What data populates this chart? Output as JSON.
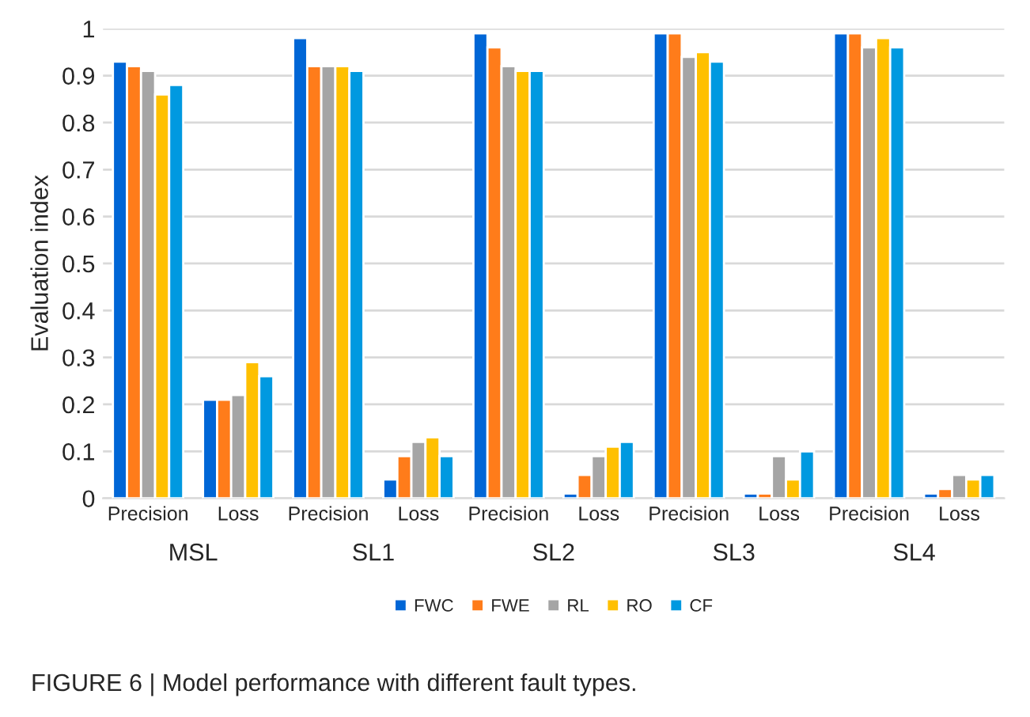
{
  "chart_data": {
    "type": "bar",
    "ylabel": "Evaluation index",
    "categories": [
      "Precision",
      "Loss",
      "Precision",
      "Loss",
      "Precision",
      "Loss",
      "Precision",
      "Loss",
      "Precision",
      "Loss"
    ],
    "series": [
      {
        "name": "FWC",
        "color": "#0066d6",
        "values": [
          0.93,
          0.21,
          0.98,
          0.04,
          0.99,
          0.01,
          0.99,
          0.01,
          0.99,
          0.01
        ]
      },
      {
        "name": "FWE",
        "color": "#ff7c1a",
        "values": [
          0.92,
          0.21,
          0.92,
          0.09,
          0.96,
          0.05,
          0.99,
          0.01,
          0.99,
          0.02
        ]
      },
      {
        "name": "RL",
        "color": "#a5a5a5",
        "values": [
          0.91,
          0.22,
          0.92,
          0.12,
          0.92,
          0.09,
          0.94,
          0.09,
          0.96,
          0.05
        ]
      },
      {
        "name": "RO",
        "color": "#ffc000",
        "values": [
          0.86,
          0.29,
          0.92,
          0.13,
          0.91,
          0.11,
          0.95,
          0.04,
          0.98,
          0.04
        ]
      },
      {
        "name": "CF",
        "color": "#0099e0",
        "values": [
          0.88,
          0.26,
          0.91,
          0.09,
          0.91,
          0.12,
          0.93,
          0.1,
          0.96,
          0.05
        ]
      }
    ],
    "ylim": [
      0,
      1
    ],
    "yticks": [
      0,
      0.1,
      0.2,
      0.3,
      0.4,
      0.5,
      0.6,
      0.7,
      0.8,
      0.9,
      1
    ],
    "grid": "y",
    "legend": "bottom",
    "annotations": [
      "MSL",
      "SL1",
      "SL2",
      "SL3",
      "SL4",
      "FIGURE 6 | Model performance with different fault types."
    ]
  }
}
